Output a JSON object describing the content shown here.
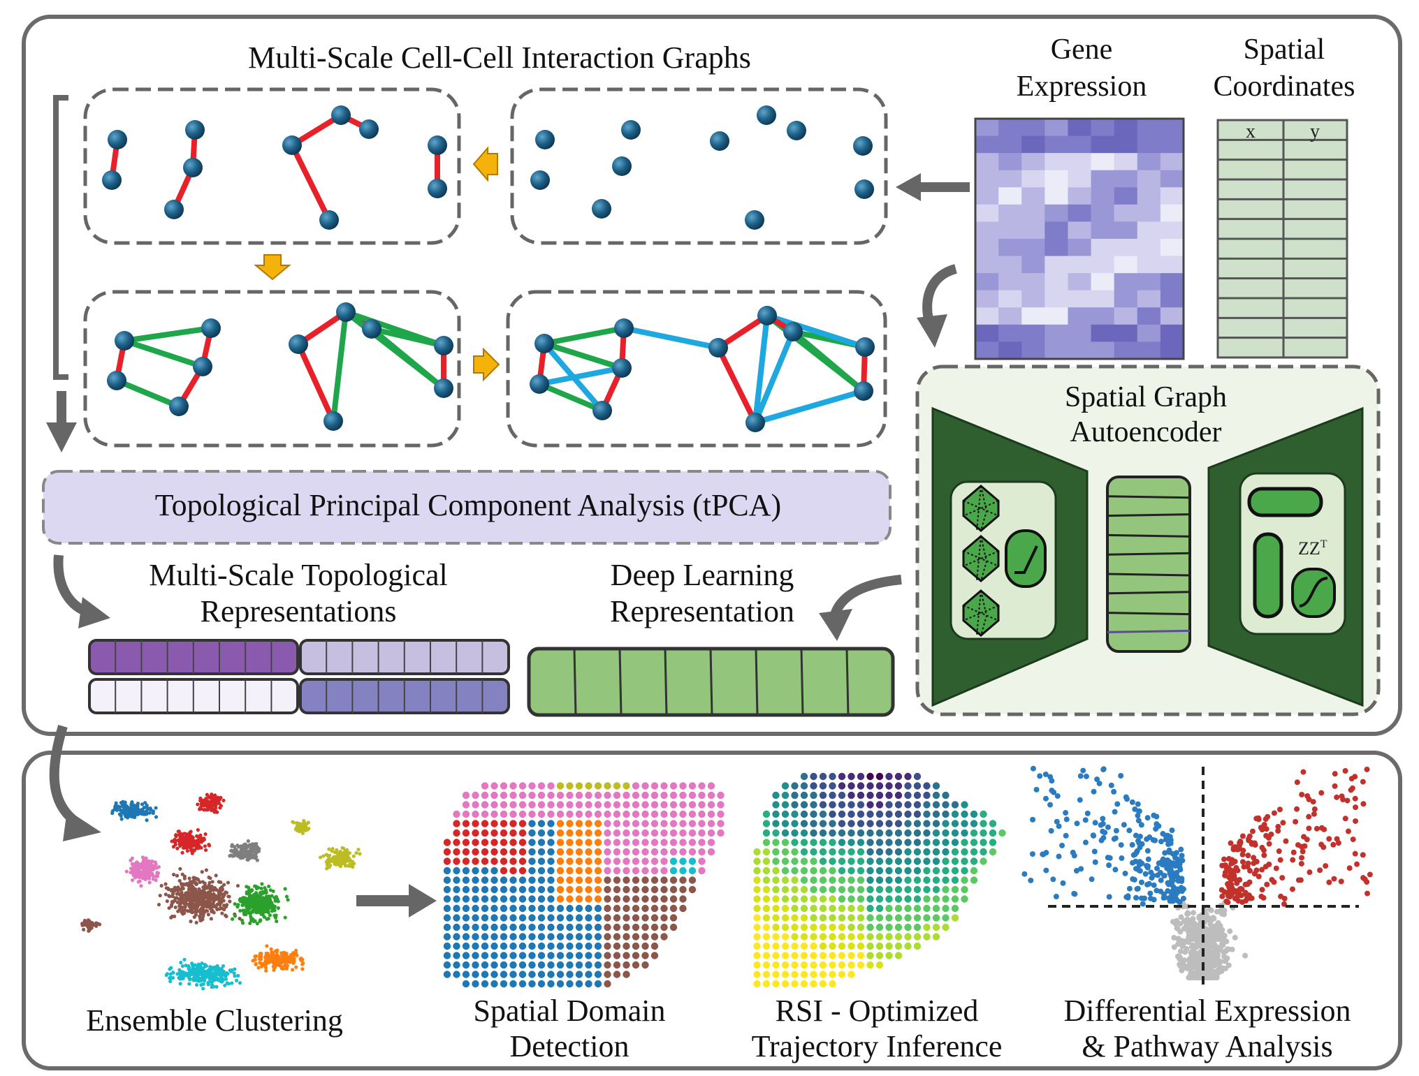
{
  "graphs_panel": {
    "title": "Multi-Scale Cell-Cell Interaction Graphs"
  },
  "inputs": {
    "gene_expression": [
      "Gene",
      "Expression"
    ],
    "spatial_coordinates": [
      "Spatial",
      "Coordinates"
    ],
    "coord_columns": [
      "x",
      "y"
    ]
  },
  "autoencoder": {
    "title": [
      "Spatial Graph",
      "Autoencoder"
    ],
    "decoder_formula": "ZZ",
    "decoder_superscript": "T"
  },
  "tpca": {
    "label": "Topological Principal Component Analysis (tPCA)"
  },
  "representations": {
    "topological": [
      "Multi-Scale Topological",
      "Representations"
    ],
    "deep": [
      "Deep Learning",
      "Representation"
    ]
  },
  "outputs": {
    "clustering": "Ensemble Clustering",
    "spatial_domain": [
      "Spatial Domain",
      "Detection"
    ],
    "trajectory": [
      "RSI - Optimized",
      "Trajectory Inference"
    ],
    "differential": [
      "Differential Expression",
      "& Pathway Analysis"
    ]
  },
  "colors": {
    "frame": "#666666",
    "node": "#1d5f86",
    "edge_red": "#e8202a",
    "edge_green": "#1fa64a",
    "edge_blue": "#1fa8e0",
    "arrow_yellow": "#f5b20a",
    "tpca_fill": "#dcd8f2",
    "heatmap_dark": "#6b6bbd",
    "coord_fill": "#cfe1cb",
    "ae_dark": "#2f5e2f",
    "ae_light": "#dcebd2",
    "deep_green": "#93c57c"
  }
}
